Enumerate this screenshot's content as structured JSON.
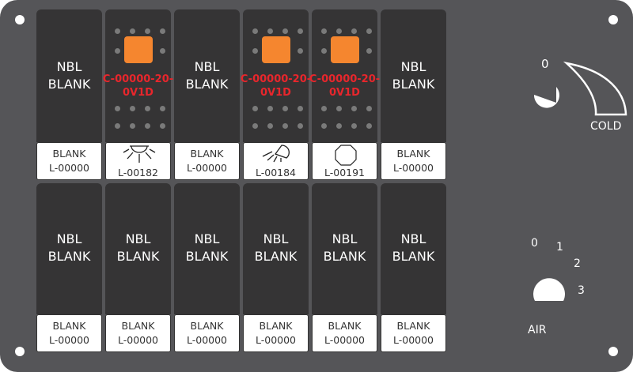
{
  "colors": {
    "panel": "#555558",
    "rocker": "#353435",
    "lamp": "#f5862f",
    "code": "#e8262c"
  },
  "top_row": [
    {
      "type": "blank",
      "line1": "NBL",
      "line2": "BLANK",
      "label1": "BLANK",
      "label2": "L-00000"
    },
    {
      "type": "lit",
      "code1": "C-00000-20-",
      "code2": "0V1D",
      "icon": "sun-icon",
      "label2": "L-00182"
    },
    {
      "type": "blank",
      "line1": "NBL",
      "line2": "BLANK",
      "label1": "BLANK",
      "label2": "L-00000"
    },
    {
      "type": "lit",
      "code1": "C-00000-20-",
      "code2": "0V1D",
      "icon": "floodlight-icon",
      "label2": "L-00184"
    },
    {
      "type": "lit",
      "code1": "C-00000-20-",
      "code2": "0V1D",
      "icon": "octagon-icon",
      "label2": "L-00191"
    },
    {
      "type": "blank",
      "line1": "NBL",
      "line2": "BLANK",
      "label1": "BLANK",
      "label2": "L-00000"
    }
  ],
  "bottom_row": [
    {
      "line1": "NBL",
      "line2": "BLANK",
      "label1": "BLANK",
      "label2": "L-00000"
    },
    {
      "line1": "NBL",
      "line2": "BLANK",
      "label1": "BLANK",
      "label2": "L-00000"
    },
    {
      "line1": "NBL",
      "line2": "BLANK",
      "label1": "BLANK",
      "label2": "L-00000"
    },
    {
      "line1": "NBL",
      "line2": "BLANK",
      "label1": "BLANK",
      "label2": "L-00000"
    },
    {
      "line1": "NBL",
      "line2": "BLANK",
      "label1": "BLANK",
      "label2": "L-00000"
    },
    {
      "line1": "NBL",
      "line2": "BLANK",
      "label1": "BLANK",
      "label2": "L-00000"
    }
  ],
  "cold_knob": {
    "zero": "0",
    "label": "COLD"
  },
  "air_knob": {
    "p0": "0",
    "p1": "1",
    "p2": "2",
    "p3": "3",
    "label": "AIR"
  }
}
